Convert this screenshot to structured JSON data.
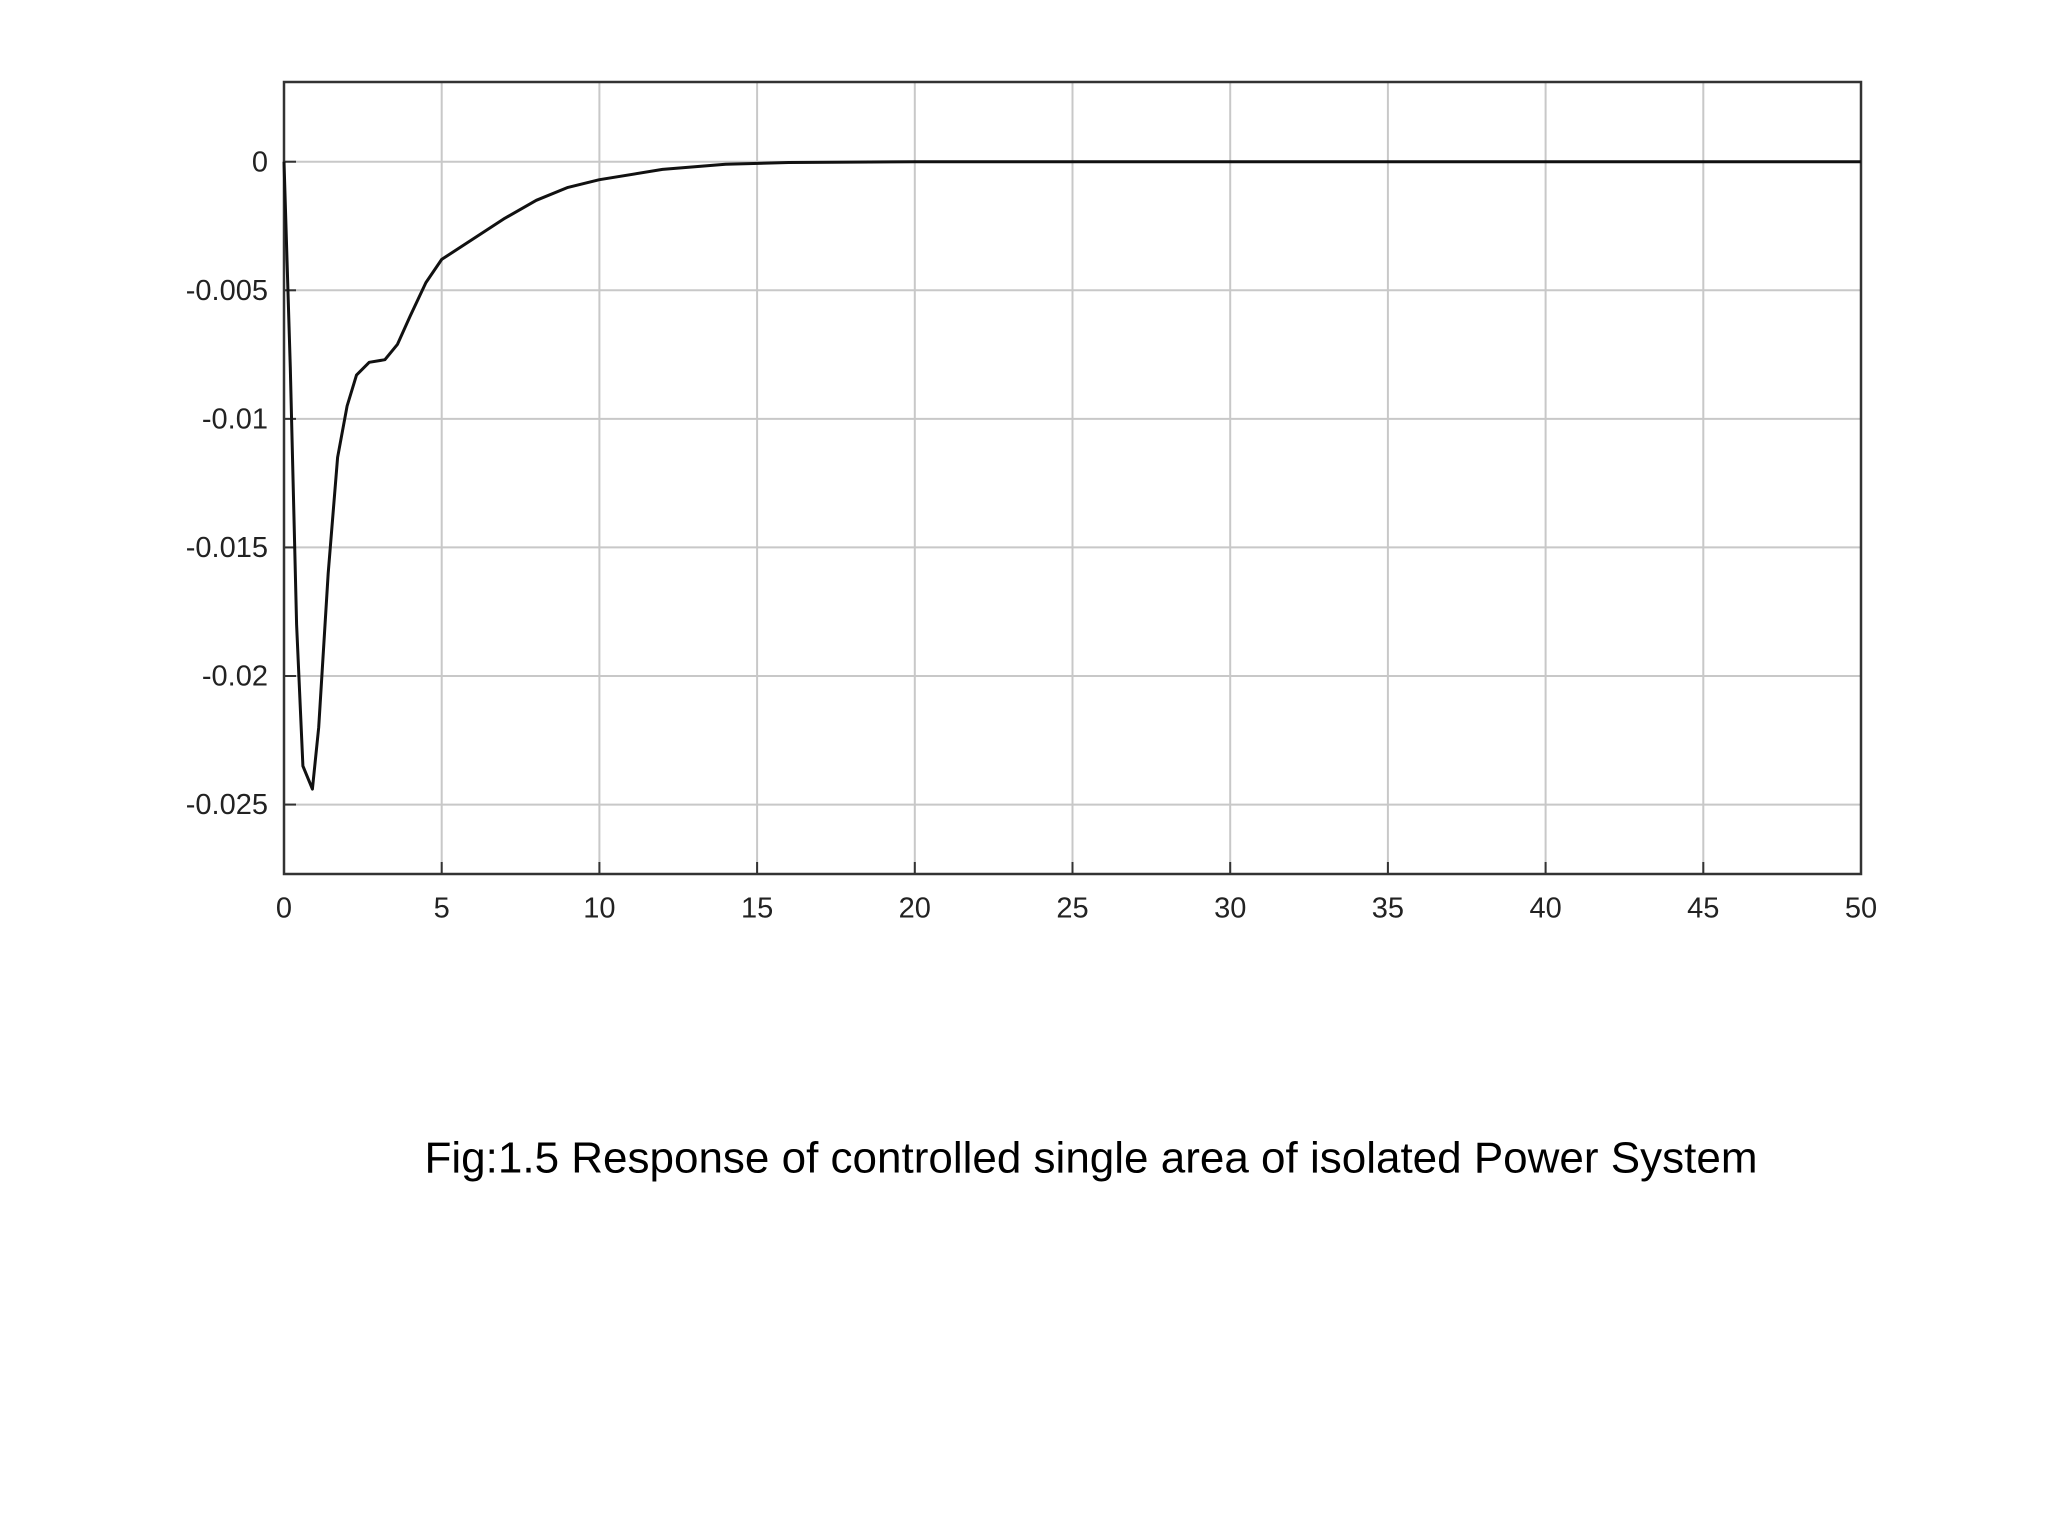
{
  "chart_data": {
    "type": "line",
    "caption": "Fig:1.5 Response of controlled single area of isolated Power System",
    "x": [
      0,
      0.2,
      0.4,
      0.6,
      0.9,
      1.1,
      1.4,
      1.7,
      2.0,
      2.3,
      2.7,
      3.2,
      3.6,
      4.0,
      4.5,
      5,
      6,
      7,
      8,
      9,
      10,
      12,
      14,
      16,
      20,
      30,
      50
    ],
    "series": [
      {
        "color": "#111111",
        "values": [
          0,
          -0.008,
          -0.018,
          -0.0235,
          -0.0244,
          -0.022,
          -0.016,
          -0.0115,
          -0.0095,
          -0.0083,
          -0.0078,
          -0.0077,
          -0.0071,
          -0.006,
          -0.0047,
          -0.0038,
          -0.003,
          -0.0022,
          -0.0015,
          -0.001,
          -0.0007,
          -0.0003,
          -0.0001,
          -3e-05,
          0,
          0,
          0
        ]
      }
    ],
    "xlim": [
      0,
      50
    ],
    "xticks": [
      0,
      5,
      10,
      15,
      20,
      25,
      30,
      35,
      40,
      45,
      50
    ],
    "ylim": [
      -0.0277,
      0.0031
    ],
    "yticks": [
      -0.025,
      -0.02,
      -0.015,
      -0.01,
      -0.005,
      0
    ],
    "grid": true
  }
}
